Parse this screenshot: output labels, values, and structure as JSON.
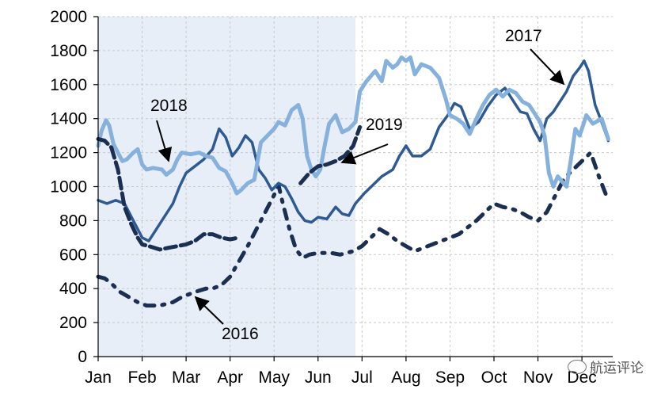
{
  "chart_data": {
    "type": "line",
    "title": "",
    "xlabel": "",
    "ylabel": "",
    "ylim": [
      0,
      2000
    ],
    "yticks": [
      0,
      200,
      400,
      600,
      800,
      1000,
      1200,
      1400,
      1600,
      1800,
      2000
    ],
    "xlim": [
      0,
      11.7
    ],
    "months": [
      "Jan",
      "Feb",
      "Mar",
      "Apr",
      "May",
      "Jun",
      "Jul",
      "Aug",
      "Sep",
      "Oct",
      "Nov",
      "Dec"
    ],
    "grid": true,
    "shaded_region": [
      0,
      5.85
    ],
    "series": [
      {
        "name": "2016",
        "color": "#1b2f52",
        "style": "dash-dot",
        "points": [
          [
            0,
            470
          ],
          [
            0.15,
            460
          ],
          [
            0.3,
            430
          ],
          [
            0.5,
            380
          ],
          [
            0.7,
            350
          ],
          [
            0.9,
            320
          ],
          [
            1.1,
            300
          ],
          [
            1.4,
            300
          ],
          [
            1.7,
            320
          ],
          [
            1.9,
            350
          ],
          [
            2.2,
            380
          ],
          [
            2.45,
            400
          ],
          [
            2.6,
            400
          ],
          [
            2.8,
            420
          ],
          [
            3.0,
            470
          ],
          [
            3.2,
            560
          ],
          [
            3.4,
            650
          ],
          [
            3.6,
            750
          ],
          [
            3.8,
            850
          ],
          [
            4.0,
            950
          ],
          [
            4.1,
            1010
          ],
          [
            4.2,
            900
          ],
          [
            4.35,
            750
          ],
          [
            4.5,
            630
          ],
          [
            4.65,
            580
          ],
          [
            4.8,
            600
          ],
          [
            5.0,
            610
          ],
          [
            5.3,
            610
          ],
          [
            5.5,
            600
          ],
          [
            5.8,
            620
          ],
          [
            6.0,
            650
          ],
          [
            6.2,
            700
          ],
          [
            6.4,
            750
          ],
          [
            6.6,
            720
          ],
          [
            6.8,
            680
          ],
          [
            7.0,
            650
          ],
          [
            7.2,
            620
          ],
          [
            7.4,
            640
          ],
          [
            7.6,
            660
          ],
          [
            7.8,
            680
          ],
          [
            8.0,
            700
          ],
          [
            8.2,
            720
          ],
          [
            8.4,
            760
          ],
          [
            8.6,
            800
          ],
          [
            8.8,
            850
          ],
          [
            9.0,
            900
          ],
          [
            9.2,
            880
          ],
          [
            9.4,
            870
          ],
          [
            9.6,
            850
          ],
          [
            9.8,
            820
          ],
          [
            10.0,
            800
          ],
          [
            10.2,
            850
          ],
          [
            10.4,
            950
          ],
          [
            10.6,
            1050
          ],
          [
            10.8,
            1100
          ],
          [
            11.0,
            1150
          ],
          [
            11.2,
            1200
          ],
          [
            11.4,
            1050
          ],
          [
            11.55,
            950
          ]
        ]
      },
      {
        "name": "2017",
        "color": "#2e5a94",
        "style": "solid",
        "points": [
          [
            0,
            920
          ],
          [
            0.2,
            900
          ],
          [
            0.4,
            920
          ],
          [
            0.6,
            900
          ],
          [
            0.8,
            800
          ],
          [
            1.0,
            700
          ],
          [
            1.15,
            680
          ],
          [
            1.3,
            740
          ],
          [
            1.5,
            820
          ],
          [
            1.7,
            900
          ],
          [
            1.85,
            1000
          ],
          [
            2.0,
            1080
          ],
          [
            2.2,
            1120
          ],
          [
            2.4,
            1160
          ],
          [
            2.6,
            1220
          ],
          [
            2.75,
            1340
          ],
          [
            2.9,
            1290
          ],
          [
            3.05,
            1180
          ],
          [
            3.2,
            1230
          ],
          [
            3.35,
            1300
          ],
          [
            3.5,
            1260
          ],
          [
            3.65,
            1100
          ],
          [
            3.8,
            1050
          ],
          [
            3.95,
            980
          ],
          [
            4.1,
            1020
          ],
          [
            4.25,
            1000
          ],
          [
            4.4,
            930
          ],
          [
            4.55,
            850
          ],
          [
            4.7,
            800
          ],
          [
            4.85,
            790
          ],
          [
            5.0,
            820
          ],
          [
            5.2,
            810
          ],
          [
            5.4,
            880
          ],
          [
            5.55,
            840
          ],
          [
            5.7,
            830
          ],
          [
            5.85,
            900
          ],
          [
            6.05,
            960
          ],
          [
            6.25,
            1010
          ],
          [
            6.45,
            1060
          ],
          [
            6.7,
            1100
          ],
          [
            6.85,
            1180
          ],
          [
            7.0,
            1240
          ],
          [
            7.15,
            1180
          ],
          [
            7.35,
            1180
          ],
          [
            7.55,
            1220
          ],
          [
            7.75,
            1350
          ],
          [
            7.95,
            1420
          ],
          [
            8.1,
            1490
          ],
          [
            8.25,
            1470
          ],
          [
            8.45,
            1340
          ],
          [
            8.65,
            1380
          ],
          [
            8.85,
            1470
          ],
          [
            9.05,
            1540
          ],
          [
            9.25,
            1580
          ],
          [
            9.45,
            1500
          ],
          [
            9.6,
            1440
          ],
          [
            9.75,
            1430
          ],
          [
            9.9,
            1340
          ],
          [
            10.05,
            1270
          ],
          [
            10.2,
            1400
          ],
          [
            10.35,
            1440
          ],
          [
            10.5,
            1500
          ],
          [
            10.65,
            1560
          ],
          [
            10.8,
            1650
          ],
          [
            10.95,
            1700
          ],
          [
            11.05,
            1740
          ],
          [
            11.15,
            1680
          ],
          [
            11.3,
            1480
          ],
          [
            11.45,
            1380
          ],
          [
            11.6,
            1270
          ]
        ]
      },
      {
        "name": "2018",
        "color": "#86b1dc",
        "style": "solid",
        "points": [
          [
            0,
            1240
          ],
          [
            0.08,
            1330
          ],
          [
            0.18,
            1390
          ],
          [
            0.25,
            1360
          ],
          [
            0.35,
            1250
          ],
          [
            0.45,
            1200
          ],
          [
            0.55,
            1150
          ],
          [
            0.65,
            1160
          ],
          [
            0.8,
            1200
          ],
          [
            0.9,
            1220
          ],
          [
            1.0,
            1130
          ],
          [
            1.1,
            1100
          ],
          [
            1.25,
            1110
          ],
          [
            1.45,
            1100
          ],
          [
            1.55,
            1070
          ],
          [
            1.7,
            1100
          ],
          [
            1.8,
            1160
          ],
          [
            1.9,
            1200
          ],
          [
            2.1,
            1190
          ],
          [
            2.3,
            1200
          ],
          [
            2.45,
            1180
          ],
          [
            2.6,
            1170
          ],
          [
            2.75,
            1110
          ],
          [
            2.9,
            1090
          ],
          [
            3.05,
            1020
          ],
          [
            3.15,
            960
          ],
          [
            3.25,
            980
          ],
          [
            3.4,
            1020
          ],
          [
            3.55,
            1040
          ],
          [
            3.7,
            1260
          ],
          [
            3.85,
            1300
          ],
          [
            4.0,
            1340
          ],
          [
            4.1,
            1380
          ],
          [
            4.25,
            1360
          ],
          [
            4.4,
            1450
          ],
          [
            4.55,
            1480
          ],
          [
            4.65,
            1400
          ],
          [
            4.75,
            1180
          ],
          [
            4.85,
            1100
          ],
          [
            4.95,
            1060
          ],
          [
            5.05,
            1100
          ],
          [
            5.15,
            1240
          ],
          [
            5.25,
            1370
          ],
          [
            5.4,
            1420
          ],
          [
            5.55,
            1320
          ],
          [
            5.7,
            1340
          ],
          [
            5.85,
            1380
          ],
          [
            5.95,
            1560
          ],
          [
            6.1,
            1620
          ],
          [
            6.2,
            1650
          ],
          [
            6.3,
            1680
          ],
          [
            6.45,
            1620
          ],
          [
            6.55,
            1740
          ],
          [
            6.7,
            1700
          ],
          [
            6.8,
            1720
          ],
          [
            6.9,
            1760
          ],
          [
            7.0,
            1740
          ],
          [
            7.1,
            1760
          ],
          [
            7.2,
            1660
          ],
          [
            7.35,
            1720
          ],
          [
            7.55,
            1700
          ],
          [
            7.75,
            1640
          ],
          [
            7.9,
            1520
          ],
          [
            8.0,
            1420
          ],
          [
            8.15,
            1400
          ],
          [
            8.3,
            1370
          ],
          [
            8.45,
            1310
          ],
          [
            8.6,
            1400
          ],
          [
            8.75,
            1480
          ],
          [
            8.9,
            1540
          ],
          [
            9.05,
            1570
          ],
          [
            9.2,
            1530
          ],
          [
            9.35,
            1570
          ],
          [
            9.5,
            1550
          ],
          [
            9.65,
            1500
          ],
          [
            9.8,
            1480
          ],
          [
            9.95,
            1420
          ],
          [
            10.05,
            1380
          ],
          [
            10.15,
            1300
          ],
          [
            10.25,
            1080
          ],
          [
            10.35,
            1000
          ],
          [
            10.45,
            1060
          ],
          [
            10.55,
            1030
          ],
          [
            10.65,
            1000
          ],
          [
            10.75,
            1160
          ],
          [
            10.85,
            1340
          ],
          [
            10.95,
            1300
          ],
          [
            11.1,
            1420
          ],
          [
            11.25,
            1370
          ],
          [
            11.45,
            1400
          ],
          [
            11.6,
            1280
          ]
        ]
      },
      {
        "name": "2019",
        "color": "#1b2f52",
        "style": "dash",
        "points": [
          [
            0,
            1280
          ],
          [
            0.15,
            1270
          ],
          [
            0.3,
            1230
          ],
          [
            0.45,
            1100
          ],
          [
            0.6,
            880
          ],
          [
            0.75,
            780
          ],
          [
            0.9,
            700
          ],
          [
            1.0,
            660
          ],
          [
            1.15,
            650
          ],
          [
            1.4,
            630
          ],
          [
            1.6,
            640
          ],
          [
            1.8,
            650
          ],
          [
            2.0,
            660
          ],
          [
            2.2,
            680
          ],
          [
            2.4,
            720
          ],
          [
            2.6,
            720
          ],
          [
            2.8,
            700
          ],
          [
            3.0,
            690
          ],
          [
            3.2,
            700
          ]
        ],
        "points_b": [
          [
            4.6,
            1020
          ],
          [
            4.8,
            1080
          ],
          [
            5.0,
            1120
          ],
          [
            5.2,
            1130
          ],
          [
            5.4,
            1150
          ],
          [
            5.6,
            1180
          ],
          [
            5.8,
            1240
          ],
          [
            5.95,
            1350
          ]
        ]
      }
    ],
    "annotations": [
      {
        "label": "2018"
      },
      {
        "label": "2019"
      },
      {
        "label": "2017"
      },
      {
        "label": "2016"
      }
    ]
  },
  "watermark": {
    "text": "航运评论",
    "icon": "wechat-icon"
  }
}
